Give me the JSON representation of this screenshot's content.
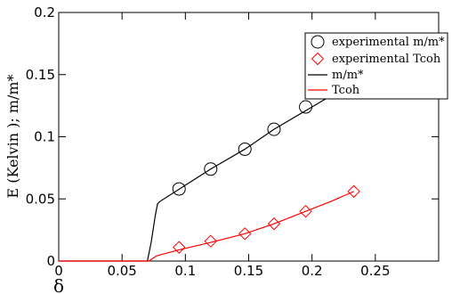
{
  "chart_data": {
    "type": "scatter",
    "xlabel": "δ",
    "ylabel": "E (Kelvin ); m/m*",
    "xlim": [
      0,
      0.3
    ],
    "ylim": [
      0,
      0.2
    ],
    "xticks": [
      0,
      0.05,
      0.1,
      0.15,
      0.2,
      0.25
    ],
    "xtick_labels": [
      "0",
      "0.05",
      "0.1",
      "0.15",
      "0.2",
      "0.25"
    ],
    "yticks": [
      0,
      0.05,
      0.1,
      0.15,
      0.2
    ],
    "ytick_labels": [
      "0",
      "0.05",
      "0.1",
      "0.15",
      "0.2"
    ],
    "grid": false,
    "legend_position": "top-right",
    "series": [
      {
        "name": "experimental m/m*",
        "kind": "markers",
        "marker": "circle",
        "color": "#000000",
        "x": [
          0.095,
          0.12,
          0.147,
          0.17,
          0.195
        ],
        "y": [
          0.058,
          0.074,
          0.09,
          0.106,
          0.124
        ]
      },
      {
        "name": "experimental Tcoh",
        "kind": "markers",
        "marker": "diamond",
        "color": "#ff0000",
        "x": [
          0.095,
          0.12,
          0.147,
          0.17,
          0.195,
          0.233
        ],
        "y": [
          0.011,
          0.016,
          0.022,
          0.03,
          0.04,
          0.056
        ]
      },
      {
        "name": "m/m*",
        "kind": "line",
        "color": "#000000",
        "x": [
          0,
          0.07,
          0.073,
          0.076,
          0.078,
          0.08,
          0.1,
          0.12,
          0.147,
          0.17,
          0.195,
          0.22,
          0.233
        ],
        "y": [
          0,
          0,
          0.015,
          0.035,
          0.046,
          0.048,
          0.061,
          0.074,
          0.09,
          0.106,
          0.121,
          0.136,
          0.143
        ]
      },
      {
        "name": "Tcoh",
        "kind": "line",
        "color": "#ff0000",
        "x": [
          0,
          0.071,
          0.074,
          0.077,
          0.08,
          0.095,
          0.12,
          0.147,
          0.17,
          0.195,
          0.215,
          0.233
        ],
        "y": [
          0,
          0,
          0.002,
          0.004,
          0.005,
          0.009,
          0.015,
          0.022,
          0.03,
          0.04,
          0.048,
          0.056
        ]
      }
    ]
  }
}
